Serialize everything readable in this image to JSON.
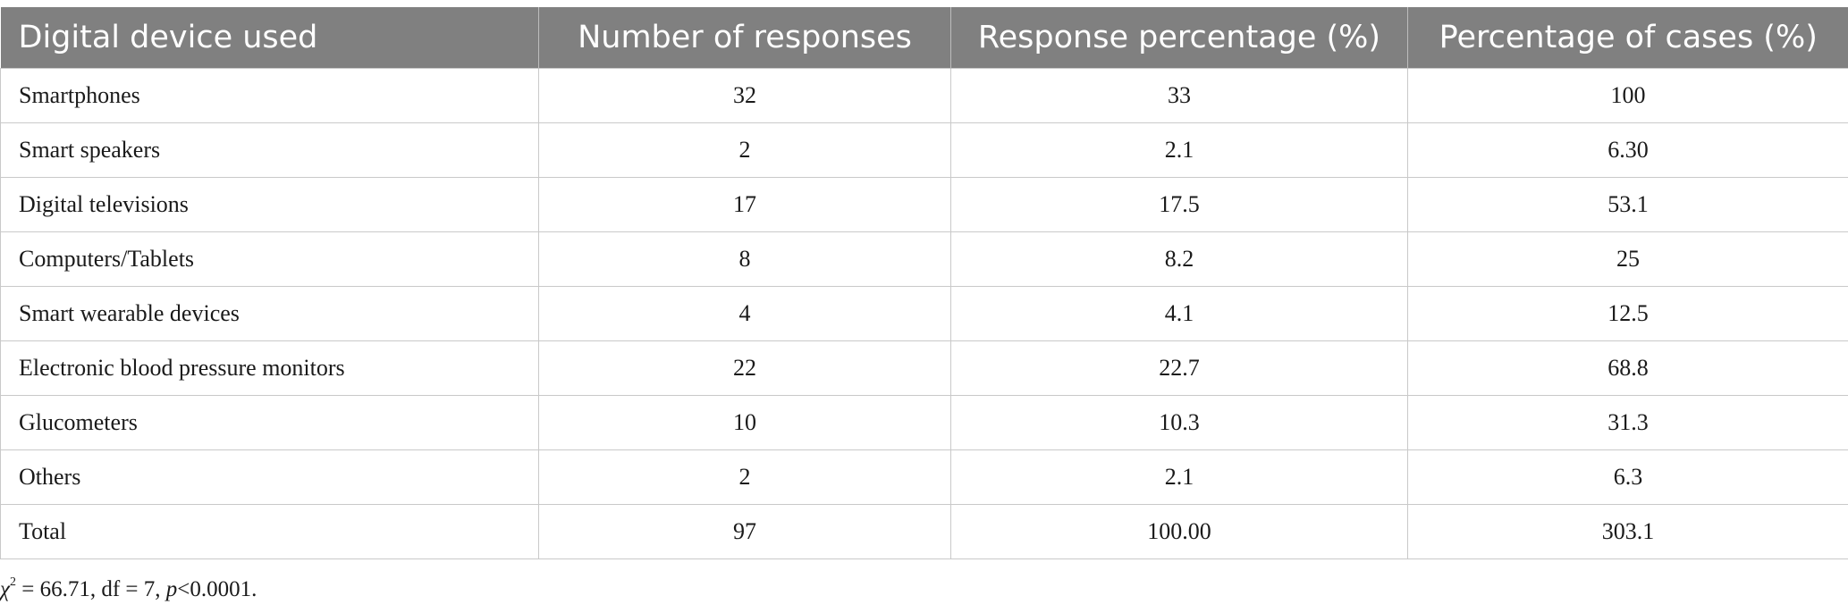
{
  "table": {
    "headers": [
      "Digital device used",
      "Number of responses",
      "Response percentage (%)",
      "Percentage of cases (%)"
    ],
    "rows": [
      [
        "Smartphones",
        "32",
        "33",
        "100"
      ],
      [
        "Smart speakers",
        "2",
        "2.1",
        "6.30"
      ],
      [
        "Digital televisions",
        "17",
        "17.5",
        "53.1"
      ],
      [
        "Computers/Tablets",
        "8",
        "8.2",
        "25"
      ],
      [
        "Smart wearable devices",
        "4",
        "4.1",
        "12.5"
      ],
      [
        "Electronic blood pressure monitors",
        "22",
        "22.7",
        "68.8"
      ],
      [
        "Glucometers",
        "10",
        "10.3",
        "31.3"
      ],
      [
        "Others",
        "2",
        "2.1",
        "6.3"
      ],
      [
        "Total",
        "97",
        "100.00",
        "303.1"
      ]
    ]
  },
  "footnote": {
    "chi_symbol": "χ",
    "chi_exponent": "2",
    "chi_value": " = 66.71, df = 7, ",
    "p_symbol": "p",
    "p_value": "<0.0001."
  }
}
